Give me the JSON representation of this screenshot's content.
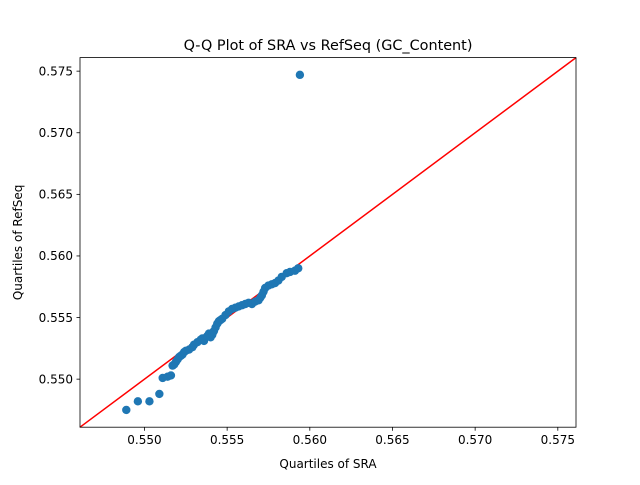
{
  "chart_data": {
    "type": "scatter",
    "title": "Q-Q Plot of SRA vs RefSeq (GC_Content)",
    "xlabel": "Quartiles of SRA",
    "ylabel": "Quartiles of RefSeq",
    "xlim": [
      0.5461,
      0.5761
    ],
    "ylim": [
      0.5461,
      0.5761
    ],
    "xticks": [
      "0.550",
      "0.555",
      "0.560",
      "0.565",
      "0.570",
      "0.575"
    ],
    "yticks": [
      "0.550",
      "0.555",
      "0.560",
      "0.565",
      "0.570",
      "0.575"
    ],
    "grid": false,
    "legend": "none",
    "point_color": "#1f77b4",
    "line_color": "#ff0000",
    "reference_line": "y = x",
    "series": [
      {
        "x": [
          0.5489,
          0.5496,
          0.5503,
          0.5509,
          0.5511,
          0.5514,
          0.5516,
          0.5517,
          0.5518,
          0.5519,
          0.552,
          0.5521,
          0.5522,
          0.5523,
          0.5524,
          0.5525,
          0.5527,
          0.5529,
          0.553,
          0.5532,
          0.5534,
          0.5535,
          0.5536,
          0.5538,
          0.5539,
          0.554,
          0.5541,
          0.5542,
          0.5543,
          0.5544,
          0.5545,
          0.5546,
          0.5547,
          0.5549,
          0.5551,
          0.5553,
          0.5555,
          0.5557,
          0.5559,
          0.5561,
          0.5563,
          0.5565,
          0.5567,
          0.5569,
          0.557,
          0.5571,
          0.5572,
          0.5573,
          0.5575,
          0.5577,
          0.5579,
          0.5581,
          0.5583,
          0.5586,
          0.5588,
          0.5591,
          0.5593,
          0.5594
        ],
        "y": [
          0.5475,
          0.5482,
          0.5482,
          0.5488,
          0.5501,
          0.5502,
          0.5503,
          0.5511,
          0.5512,
          0.5514,
          0.5516,
          0.5518,
          0.5519,
          0.552,
          0.5522,
          0.5523,
          0.5524,
          0.5526,
          0.5528,
          0.553,
          0.5532,
          0.5533,
          0.5531,
          0.5535,
          0.5537,
          0.5534,
          0.5536,
          0.5539,
          0.5542,
          0.5545,
          0.5547,
          0.5548,
          0.5549,
          0.5552,
          0.5555,
          0.5557,
          0.5558,
          0.5559,
          0.556,
          0.5561,
          0.5562,
          0.5561,
          0.5563,
          0.5564,
          0.5566,
          0.5568,
          0.5571,
          0.5574,
          0.5576,
          0.5577,
          0.5578,
          0.558,
          0.5583,
          0.5586,
          0.5587,
          0.5588,
          0.559,
          0.5747
        ]
      }
    ]
  }
}
